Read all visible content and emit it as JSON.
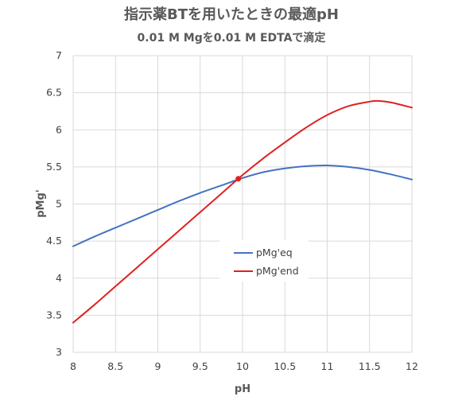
{
  "chart_data": {
    "type": "line",
    "title": "指示薬BTを用いたときの最適pH",
    "subtitle": "0.01 M Mgを0.01 M EDTAで滴定",
    "xlabel": "pH",
    "ylabel": "pMg'",
    "xlim": [
      8,
      12
    ],
    "ylim": [
      3,
      7
    ],
    "x_ticks": [
      "8",
      "8.5",
      "9",
      "9.5",
      "10",
      "10.5",
      "11",
      "11.5",
      "12"
    ],
    "y_ticks": [
      "3",
      "3.5",
      "4",
      "4.5",
      "5",
      "5.5",
      "6",
      "6.5",
      "7"
    ],
    "grid": true,
    "legend_position": "center",
    "series": [
      {
        "name": "pMg'eq",
        "color": "#4472c4",
        "x": [
          8,
          8.25,
          8.5,
          8.75,
          9,
          9.25,
          9.5,
          9.75,
          10,
          10.25,
          10.5,
          10.75,
          11,
          11.25,
          11.5,
          11.75,
          12
        ],
        "y": [
          4.43,
          4.56,
          4.68,
          4.8,
          4.92,
          5.04,
          5.15,
          5.25,
          5.35,
          5.43,
          5.48,
          5.51,
          5.52,
          5.5,
          5.46,
          5.4,
          5.33
        ]
      },
      {
        "name": "pMg'end",
        "color": "#e02020",
        "x": [
          8,
          8.25,
          8.5,
          8.75,
          9,
          9.25,
          9.5,
          9.75,
          10,
          10.25,
          10.5,
          10.75,
          11,
          11.25,
          11.5,
          11.6,
          11.75,
          12
        ],
        "y": [
          3.4,
          3.64,
          3.89,
          4.14,
          4.39,
          4.64,
          4.89,
          5.14,
          5.39,
          5.62,
          5.83,
          6.03,
          6.2,
          6.32,
          6.38,
          6.39,
          6.37,
          6.3
        ]
      }
    ],
    "intersection": {
      "x": 9.95,
      "y": 5.34,
      "color": "#e02020"
    }
  }
}
